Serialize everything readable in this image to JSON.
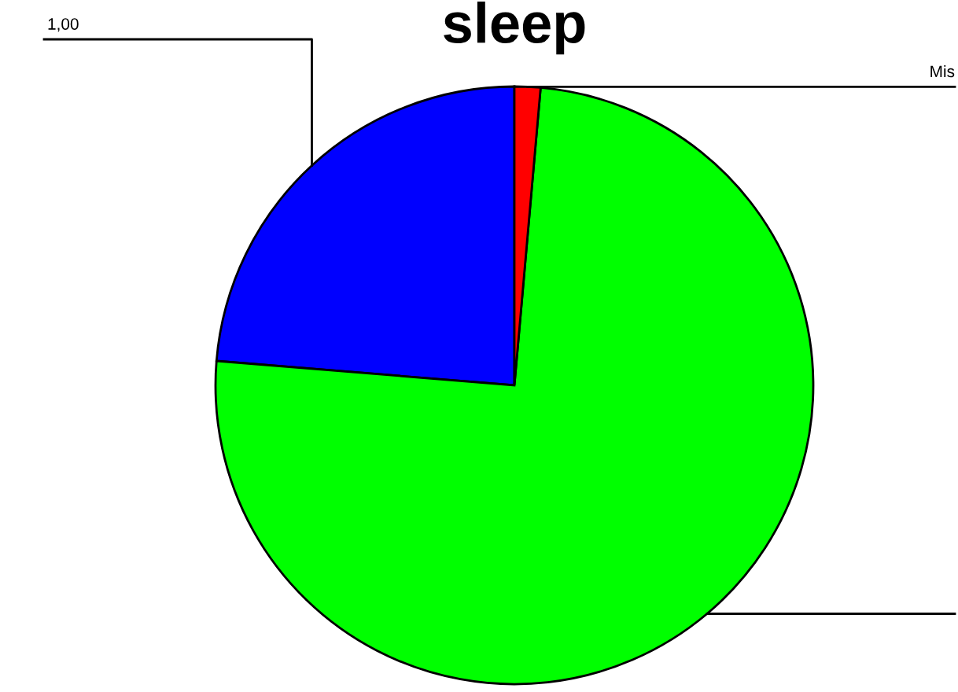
{
  "chart_data": {
    "type": "pie",
    "title": "sleep",
    "categories": [
      "1,00",
      null,
      "Mis"
    ],
    "values": [
      23.7,
      74.9,
      1.4
    ],
    "colors": [
      "#0000ff",
      "#00ff00",
      "#ff0000"
    ],
    "legend": false
  }
}
